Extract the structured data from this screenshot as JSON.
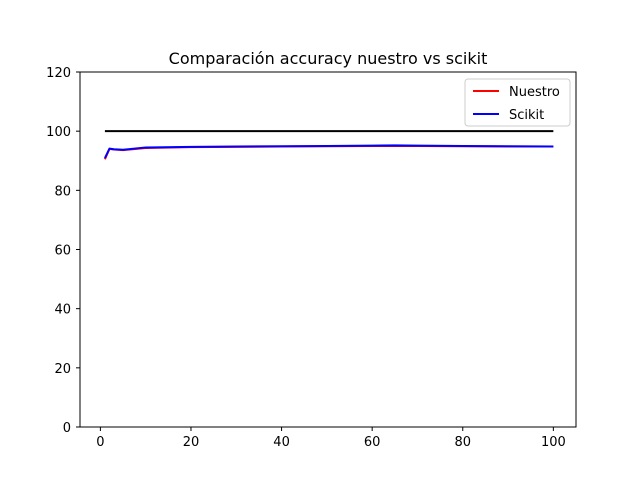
{
  "chart_data": {
    "type": "line",
    "title": "Comparación accuracy nuestro vs scikit",
    "xlabel": "",
    "ylabel": "",
    "xlim": [
      -4.5,
      105
    ],
    "ylim": [
      0,
      120
    ],
    "xticks": [
      0,
      20,
      40,
      60,
      80,
      100
    ],
    "yticks": [
      0,
      20,
      40,
      60,
      80,
      100,
      120
    ],
    "grid": false,
    "legend_position": "top-right",
    "series": [
      {
        "name": "Nuestro",
        "color": "#ff0000",
        "x": [
          1,
          2,
          3,
          5,
          10,
          20,
          30,
          40,
          50,
          60,
          65,
          70,
          80,
          90,
          100
        ],
        "y": [
          90.5,
          94.0,
          93.8,
          93.6,
          94.3,
          94.6,
          94.7,
          94.8,
          94.9,
          95.0,
          95.0,
          95.0,
          94.9,
          94.8,
          94.8
        ]
      },
      {
        "name": "Scikit",
        "color": "#0000ff",
        "x": [
          1,
          2,
          3,
          5,
          10,
          20,
          30,
          40,
          50,
          60,
          65,
          70,
          80,
          90,
          100
        ],
        "y": [
          90.9,
          94.1,
          93.9,
          93.7,
          94.5,
          94.7,
          94.8,
          94.9,
          95.0,
          95.1,
          95.2,
          95.1,
          95.0,
          94.9,
          94.8
        ]
      },
      {
        "name": "",
        "color": "#000000",
        "x": [
          1,
          100
        ],
        "y": [
          100,
          100
        ]
      }
    ]
  }
}
